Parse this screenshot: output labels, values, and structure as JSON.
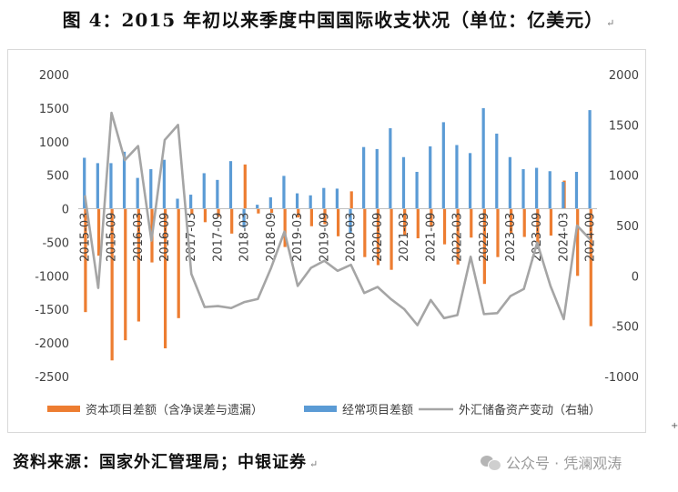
{
  "header": {
    "title": "图 4：2015 年初以来季度中国国际收支状况（单位：亿美元）",
    "return_mark": "↵"
  },
  "footer": {
    "source": "资料来源：国家外汇管理局；中银证券",
    "return_mark": "↵",
    "watermark": "公众号 · 凭澜观涛",
    "corner_mark": "+"
  },
  "chart_data": {
    "type": "bar",
    "categories": [
      "2015-03",
      "2015-06",
      "2015-09",
      "2015-12",
      "2016-03",
      "2016-06",
      "2016-09",
      "2016-12",
      "2017-03",
      "2017-06",
      "2017-09",
      "2017-12",
      "2018-03",
      "2018-06",
      "2018-09",
      "2018-12",
      "2019-03",
      "2019-06",
      "2019-09",
      "2019-12",
      "2020-03",
      "2020-06",
      "2020-09",
      "2020-12",
      "2021-03",
      "2021-06",
      "2021-09",
      "2021-12",
      "2022-03",
      "2022-06",
      "2022-09",
      "2022-12",
      "2023-03",
      "2023-06",
      "2023-09",
      "2023-12",
      "2024-03",
      "2024-06",
      "2024-09"
    ],
    "tick_labels": [
      "2015-03",
      "2015-09",
      "2016-03",
      "2016-09",
      "2017-03",
      "2017-09",
      "2018-03",
      "2018-09",
      "2019-03",
      "2019-09",
      "2020-03",
      "2020-09",
      "2021-03",
      "2021-09",
      "2022-03",
      "2022-09",
      "2023-03",
      "2023-09",
      "2024-03",
      "2024-09"
    ],
    "series": [
      {
        "name": "资本项目差额（含净误差与遗漏）",
        "type": "bar",
        "axis": "left",
        "color": "#ED7D31",
        "values": [
          -1540,
          -700,
          -2260,
          -1960,
          -1680,
          -800,
          -2080,
          -1630,
          -80,
          -200,
          -120,
          -370,
          660,
          -70,
          -60,
          -570,
          -130,
          -260,
          -230,
          -410,
          260,
          -720,
          -840,
          -910,
          -400,
          -440,
          -270,
          -530,
          -830,
          -430,
          -1120,
          -720,
          -370,
          -420,
          -560,
          -400,
          420,
          -1000,
          -1750
        ]
      },
      {
        "name": "经常项目差额",
        "type": "bar",
        "axis": "left",
        "color": "#5B9BD5",
        "values": [
          760,
          680,
          680,
          850,
          460,
          590,
          730,
          150,
          210,
          530,
          430,
          710,
          -280,
          60,
          170,
          490,
          230,
          200,
          310,
          300,
          -360,
          920,
          890,
          1200,
          770,
          550,
          930,
          1290,
          950,
          830,
          1500,
          1120,
          770,
          590,
          610,
          560,
          400,
          550,
          1470
        ]
      },
      {
        "name": "外汇储备资产变动（右轴）",
        "type": "line",
        "axis": "right",
        "color": "#A5A5A5",
        "values": [
          800,
          -120,
          1620,
          1150,
          1290,
          350,
          1350,
          1500,
          20,
          -310,
          -300,
          -320,
          -260,
          -230,
          80,
          440,
          -100,
          80,
          150,
          50,
          110,
          -170,
          -110,
          -230,
          -330,
          -490,
          -240,
          -420,
          -390,
          190,
          -380,
          -370,
          -200,
          -130,
          330,
          -100,
          -430,
          500,
          360
        ]
      }
    ],
    "ylim_left": [
      -2500,
      2000
    ],
    "yticks_left": [
      -2500,
      -2000,
      -1500,
      -1000,
      -500,
      0,
      500,
      1000,
      1500,
      2000
    ],
    "ylim_right": [
      -1000,
      2000
    ],
    "yticks_right": [
      -1000,
      -500,
      0,
      500,
      1000,
      1500,
      2000
    ],
    "legend_position": "bottom",
    "grid": false
  }
}
